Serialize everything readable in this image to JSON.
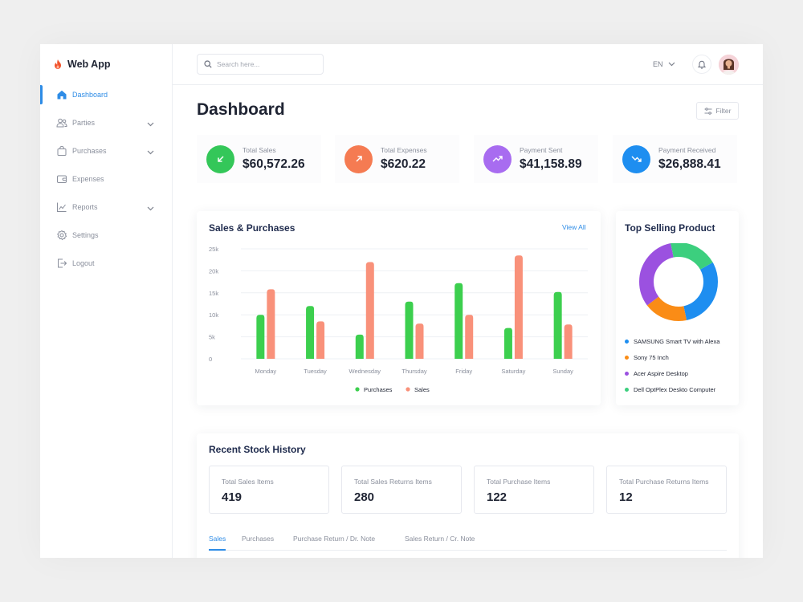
{
  "app": {
    "name": "Web App"
  },
  "sidebar": {
    "items": [
      {
        "label": "Dashboard",
        "icon": "home-icon",
        "active": true,
        "has_children": false
      },
      {
        "label": "Parties",
        "icon": "users-icon",
        "active": false,
        "has_children": true
      },
      {
        "label": "Purchases",
        "icon": "bag-icon",
        "active": false,
        "has_children": true
      },
      {
        "label": "Expenses",
        "icon": "wallet-icon",
        "active": false,
        "has_children": false
      },
      {
        "label": "Reports",
        "icon": "chart-icon",
        "active": false,
        "has_children": true
      },
      {
        "label": "Settings",
        "icon": "gear-icon",
        "active": false,
        "has_children": false
      },
      {
        "label": "Logout",
        "icon": "logout-icon",
        "active": false,
        "has_children": false
      }
    ]
  },
  "topbar": {
    "search_placeholder": "Search here...",
    "language": "EN"
  },
  "page": {
    "title": "Dashboard",
    "filter_label": "Filter"
  },
  "stats": [
    {
      "label": "Total Sales",
      "value": "$60,572.26",
      "color": "#34c759",
      "icon": "arrow-down-left-icon"
    },
    {
      "label": "Total Expenses",
      "value": "$620.22",
      "color": "#f57b52",
      "icon": "arrow-up-right-icon"
    },
    {
      "label": "Payment Sent",
      "value": "$41,158.89",
      "color": "#a86cf0",
      "icon": "trend-up-icon"
    },
    {
      "label": "Payment Received",
      "value": "$26,888.41",
      "color": "#1e8ef0",
      "icon": "trend-down-icon"
    }
  ],
  "sales_card": {
    "title": "Sales & Purchases",
    "view_all": "View All"
  },
  "chart_data": {
    "type": "bar",
    "categories": [
      "Monday",
      "Tuesday",
      "Wednesday",
      "Thursday",
      "Friday",
      "Saturday",
      "Sunday"
    ],
    "series": [
      {
        "name": "Purchases",
        "color": "#3ccf4e",
        "values": [
          10000,
          12000,
          5500,
          13000,
          17200,
          7000,
          15200
        ]
      },
      {
        "name": "Sales",
        "color": "#f9917a",
        "values": [
          15800,
          8500,
          22000,
          8000,
          10000,
          23500,
          7800
        ]
      }
    ],
    "yticks": [
      "25k",
      "20k",
      "15k",
      "10k",
      "5k",
      "0"
    ],
    "ylim": [
      0,
      25000
    ],
    "grid": true,
    "legend": "bottom-center"
  },
  "top_products": {
    "title": "Top Selling Product",
    "items": [
      {
        "name": "SAMSUNG Smart TV with Alexa",
        "color": "#1e8ef0",
        "share": 30
      },
      {
        "name": "Sony 75 Inch",
        "color": "#fa8c16",
        "share": 18
      },
      {
        "name": "Acer Aspire Desktop",
        "color": "#9b51e0",
        "share": 32
      },
      {
        "name": "Dell OptPlex Deskto Computer",
        "color": "#3ccf7e",
        "share": 20
      }
    ]
  },
  "stock_history": {
    "title": "Recent Stock History",
    "metrics": [
      {
        "label": "Total Sales Items",
        "value": "419"
      },
      {
        "label": "Total Sales Returns Items",
        "value": "280"
      },
      {
        "label": "Total Purchase Items",
        "value": "122"
      },
      {
        "label": "Total Purchase Returns Items",
        "value": "12"
      }
    ],
    "tabs": [
      {
        "label": "Sales",
        "active": true
      },
      {
        "label": "Purchases",
        "active": false
      },
      {
        "label": "Purchase Return / Dr. Note",
        "active": false
      },
      {
        "label": "Sales Return / Cr. Note",
        "active": false
      }
    ]
  }
}
